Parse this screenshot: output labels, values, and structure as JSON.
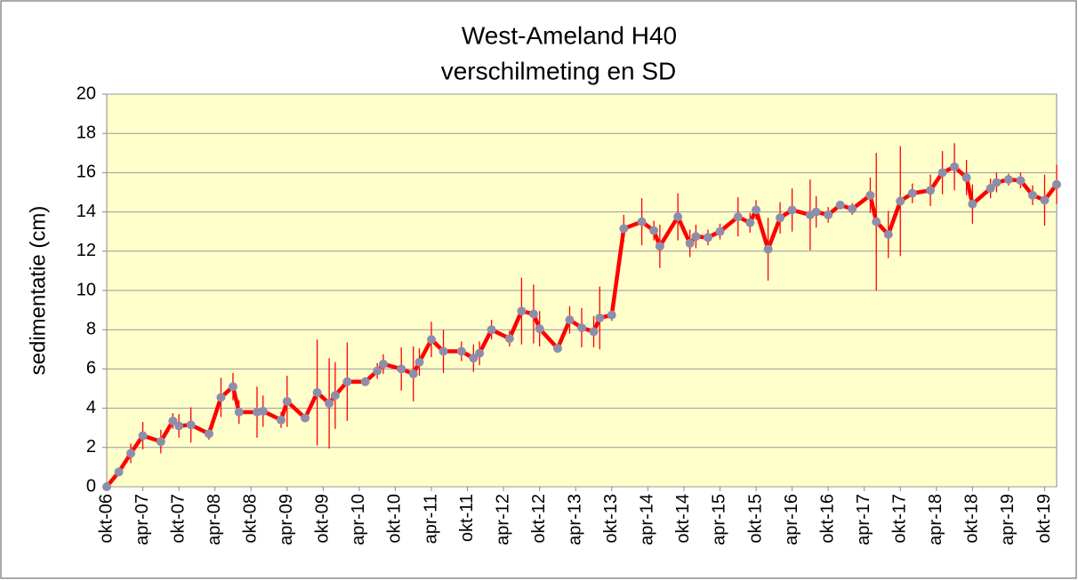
{
  "chart_data": {
    "type": "line",
    "title": "West-Ameland H40",
    "subtitle": "verschilmeting  en SD",
    "y_label": "sedimentatie (cm)",
    "background": "#ffffcc",
    "grid": true,
    "x": [
      "2006-10",
      "2006-12",
      "2007-02",
      "2007-04",
      "2007-07",
      "2007-09",
      "2007-10",
      "2007-12",
      "2008-03",
      "2008-05",
      "2008-07",
      "2008-08",
      "2008-11",
      "2008-12",
      "2009-03",
      "2009-04",
      "2009-07",
      "2009-09",
      "2009-11",
      "2009-12",
      "2010-02",
      "2010-05",
      "2010-07",
      "2010-08",
      "2010-11",
      "2011-01",
      "2011-02",
      "2011-04",
      "2011-06",
      "2011-09",
      "2011-11",
      "2011-12",
      "2012-02",
      "2012-05",
      "2012-07",
      "2012-09",
      "2012-10",
      "2013-01",
      "2013-03",
      "2013-05",
      "2013-07",
      "2013-08",
      "2013-10",
      "2013-12",
      "2014-03",
      "2014-05",
      "2014-06",
      "2014-09",
      "2014-11",
      "2014-12",
      "2015-02",
      "2015-04",
      "2015-07",
      "2015-09",
      "2015-10",
      "2015-12",
      "2016-02",
      "2016-04",
      "2016-07",
      "2016-08",
      "2016-10",
      "2016-12",
      "2017-02",
      "2017-05",
      "2017-06",
      "2017-08",
      "2017-10",
      "2017-12",
      "2018-03",
      "2018-05",
      "2018-07",
      "2018-09",
      "2018-10",
      "2019-01",
      "2019-02",
      "2019-04",
      "2019-06",
      "2019-08",
      "2019-10",
      "2019-12"
    ],
    "series": [
      {
        "color": "#ff0000",
        "marker_color": "#8e8eaa",
        "values": [
          0,
          0.75,
          1.7,
          2.6,
          2.3,
          3.35,
          3.1,
          3.15,
          2.7,
          4.55,
          5.1,
          3.8,
          3.8,
          3.85,
          3.4,
          4.35,
          3.5,
          4.8,
          4.25,
          4.65,
          5.35,
          5.35,
          5.9,
          6.25,
          6.0,
          5.75,
          6.35,
          7.5,
          6.9,
          6.9,
          6.55,
          6.8,
          8.0,
          7.55,
          8.95,
          8.8,
          8.05,
          7.05,
          8.5,
          8.1,
          7.9,
          8.6,
          8.75,
          13.15,
          13.5,
          13.05,
          12.25,
          13.75,
          12.4,
          12.75,
          12.7,
          13.0,
          13.75,
          13.45,
          14.1,
          12.1,
          13.7,
          14.1,
          13.85,
          14.0,
          13.85,
          14.35,
          14.15,
          14.85,
          13.5,
          12.85,
          14.55,
          14.95,
          15.1,
          16.0,
          16.3,
          15.75,
          14.4,
          15.2,
          15.5,
          15.65,
          15.6,
          14.85,
          14.6,
          15.4
        ],
        "error": [
          0,
          0.2,
          0.5,
          0.7,
          0.6,
          0.4,
          0.6,
          0.9,
          0.3,
          1.0,
          0.7,
          0.6,
          1.3,
          0.8,
          0.4,
          1.3,
          0.2,
          2.7,
          2.3,
          1.7,
          2.0,
          0.2,
          0.4,
          0.5,
          1.1,
          1.4,
          0.7,
          0.9,
          1.1,
          0.5,
          0.7,
          0.6,
          0.5,
          0.4,
          1.7,
          1.5,
          0.9,
          0.2,
          0.7,
          1.0,
          0.8,
          1.6,
          0.3,
          0.7,
          1.2,
          0.5,
          1.1,
          1.2,
          0.7,
          0.6,
          0.4,
          0.4,
          1.0,
          0.5,
          0.5,
          1.6,
          0.8,
          1.1,
          1.8,
          0.8,
          0.4,
          0.2,
          0.3,
          0.9,
          3.5,
          1.2,
          2.8,
          0.5,
          0.8,
          1.1,
          1.2,
          0.9,
          1.0,
          0.5,
          0.5,
          0.3,
          0.4,
          0.5,
          1.3,
          1.0
        ]
      }
    ],
    "xlim": [
      "2006-10",
      "2019-12"
    ],
    "xticks": [
      {
        "value": "2006-10",
        "label": "okt-06"
      },
      {
        "value": "2007-04",
        "label": "apr-07"
      },
      {
        "value": "2007-10",
        "label": "okt-07"
      },
      {
        "value": "2008-04",
        "label": "apr-08"
      },
      {
        "value": "2008-10",
        "label": "okt-08"
      },
      {
        "value": "2009-04",
        "label": "apr-09"
      },
      {
        "value": "2009-10",
        "label": "okt-09"
      },
      {
        "value": "2010-04",
        "label": "apr-10"
      },
      {
        "value": "2010-10",
        "label": "okt-10"
      },
      {
        "value": "2011-04",
        "label": "apr-11"
      },
      {
        "value": "2011-10",
        "label": "okt-11"
      },
      {
        "value": "2012-04",
        "label": "apr-12"
      },
      {
        "value": "2012-10",
        "label": "okt-12"
      },
      {
        "value": "2013-04",
        "label": "apr-13"
      },
      {
        "value": "2013-10",
        "label": "okt-13"
      },
      {
        "value": "2014-04",
        "label": "apr-14"
      },
      {
        "value": "2014-10",
        "label": "okt-14"
      },
      {
        "value": "2015-04",
        "label": "apr-15"
      },
      {
        "value": "2015-10",
        "label": "okt-15"
      },
      {
        "value": "2016-04",
        "label": "apr-16"
      },
      {
        "value": "2016-10",
        "label": "okt-16"
      },
      {
        "value": "2017-04",
        "label": "apr-17"
      },
      {
        "value": "2017-10",
        "label": "okt-17"
      },
      {
        "value": "2018-04",
        "label": "apr-18"
      },
      {
        "value": "2018-10",
        "label": "okt-18"
      },
      {
        "value": "2019-04",
        "label": "apr-19"
      },
      {
        "value": "2019-10",
        "label": "okt-19"
      }
    ],
    "ylim": [
      0,
      20
    ],
    "yticks": [
      0,
      2,
      4,
      6,
      8,
      10,
      12,
      14,
      16,
      18,
      20
    ]
  }
}
